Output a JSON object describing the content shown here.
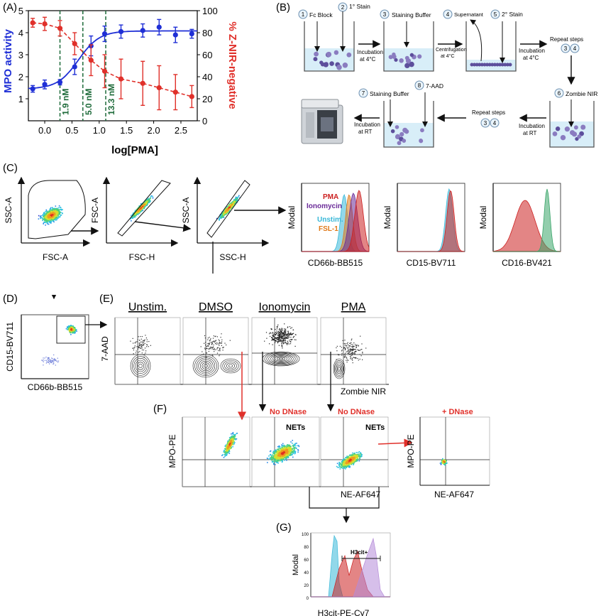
{
  "panels": {
    "A": "(A)",
    "B": "(B)",
    "C": "(C)",
    "D": "(D)",
    "E": "(E)",
    "F": "(F)",
    "G": "(G)"
  },
  "colors": {
    "mpo": "#1f2fd6",
    "znir": "#e0302a",
    "green": "#1e6b3a",
    "pma": "#cc2020",
    "ionomycin": "#6a2a98",
    "unstim": "#39b8d8",
    "fsl1": "#e07a1a",
    "nodnase": "#e0302a",
    "tube_fill": "#d8eef8",
    "cell": "#6a5aa8"
  },
  "chart_data": {
    "type": "line",
    "xlabel": "log[PMA]",
    "ylabel_left": "MPO activity",
    "ylabel_right": "% Z-NIR-negative",
    "x_ticks": [
      "0.0",
      "0.5",
      "1.0",
      "1.5",
      "2.0",
      "2.5"
    ],
    "y_left_ticks": [
      "1",
      "2",
      "3",
      "4",
      "5"
    ],
    "y_right_ticks": [
      "0",
      "20",
      "40",
      "60",
      "80",
      "100"
    ],
    "xlim": [
      -0.3,
      2.8
    ],
    "ylim_left": [
      0,
      5
    ],
    "ylim_right": [
      0,
      100
    ],
    "vlines": [
      {
        "x": 0.28,
        "label": "1.9 nM"
      },
      {
        "x": 0.7,
        "label": "5.0 nM"
      },
      {
        "x": 1.12,
        "label": "13.3 nM"
      }
    ],
    "series": [
      {
        "name": "MPO activity",
        "axis": "left",
        "x": [
          -0.22,
          0.0,
          0.28,
          0.55,
          0.85,
          1.1,
          1.4,
          1.8,
          2.1,
          2.4,
          2.7
        ],
        "y": [
          1.45,
          1.65,
          1.75,
          2.45,
          3.4,
          3.95,
          4.05,
          4.1,
          4.25,
          3.9,
          3.95
        ],
        "err": [
          0.15,
          0.2,
          0.12,
          0.35,
          0.45,
          0.35,
          0.3,
          0.3,
          0.35,
          0.35,
          0.2
        ]
      },
      {
        "name": "% Z-NIR-negative",
        "axis": "right",
        "x": [
          -0.22,
          0.0,
          0.28,
          0.55,
          0.85,
          1.1,
          1.4,
          1.8,
          2.1,
          2.4,
          2.7
        ],
        "y": [
          89,
          88,
          84,
          70,
          55,
          45,
          38,
          34,
          30,
          26,
          22
        ],
        "err": [
          4,
          6,
          7,
          10,
          14,
          15,
          18,
          20,
          20,
          16,
          10
        ]
      }
    ]
  },
  "protocol": {
    "steps": [
      {
        "n": "1",
        "label": "Fc Block"
      },
      {
        "n": "2",
        "label": "1° Stain"
      },
      {
        "n": "3",
        "label": "Staining Buffer"
      },
      {
        "n": "4",
        "label": "Supernatant"
      },
      {
        "n": "5",
        "label": "2° Stain"
      },
      {
        "n": "6",
        "label": "Zombie NIR"
      },
      {
        "n": "7",
        "label": "Staining Buffer"
      },
      {
        "n": "8",
        "label": "7-AAD"
      }
    ],
    "arrows": {
      "inc4a": "Incubation at 4°C",
      "centrifugation": "Centrifugation at 4°C",
      "inc4b": "Incubation at 4°C",
      "repeat1": "Repeat steps",
      "incRT1": "Incubation at RT",
      "repeat2": "Repeat steps",
      "incRT2": "Incubation at RT"
    },
    "repeat_circles": [
      "3",
      "4"
    ]
  },
  "gating": {
    "plots": [
      {
        "x": "FSC-A",
        "y": "SSC-A"
      },
      {
        "x": "FSC-H",
        "y": "FSC-A"
      },
      {
        "x": "SSC-H",
        "y": "SSC-A"
      }
    ],
    "histograms": [
      {
        "x": "CD66b-BB515",
        "y": "Modal"
      },
      {
        "x": "CD15-BV711",
        "y": "Modal"
      },
      {
        "x": "CD16-BV421",
        "y": "Modal"
      }
    ],
    "legend": [
      "PMA",
      "Ionomycin",
      "Unstim.",
      "FSL-1"
    ]
  },
  "panelD": {
    "x": "CD66b-BB515",
    "y": "CD15-BV711"
  },
  "panelE": {
    "conditions": [
      "Unstim.",
      "DMSO",
      "Ionomycin",
      "PMA"
    ],
    "x": "Zombie NIR",
    "y": "7-AAD"
  },
  "panelF": {
    "y": "MPO-PE",
    "x": "NE-AF647",
    "nodnase1": "No DNase",
    "nodnase2": "No DNase",
    "dnase": "+ DNase",
    "nets1": "NETs",
    "nets2": "NETs",
    "x2": "NE-AF647",
    "y2": "MPO-PE"
  },
  "panelG": {
    "y": "Modal",
    "x": "H3cit-PE-Cy7",
    "gate": "H3cit+"
  }
}
